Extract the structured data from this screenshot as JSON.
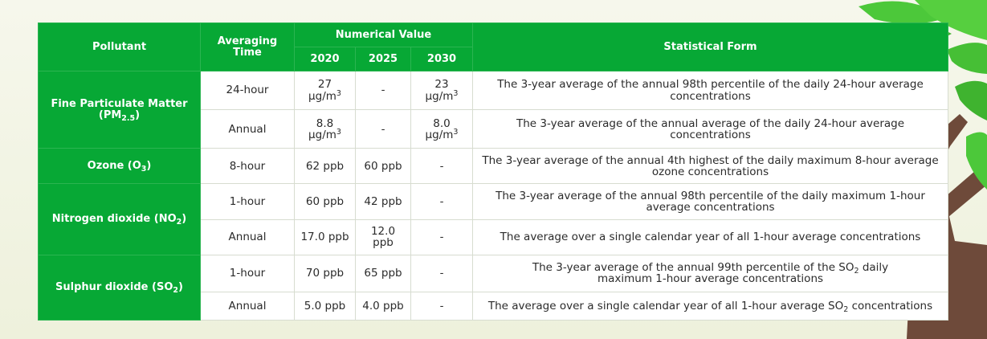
{
  "header": {
    "pollutant": "Pollutant",
    "averaging_time": "Averaging Time",
    "numerical_value": "Numerical Value",
    "years": [
      "2020",
      "2025",
      "2030"
    ],
    "statistical_form": "Statistical Form"
  },
  "pollutants": {
    "pm25": {
      "name": "Fine Particulate Matter",
      "formula_prefix": "(PM",
      "formula_sub": "2.5",
      "formula_suffix": ")"
    },
    "o3": {
      "name": "Ozone (O",
      "sub": "3",
      "suffix": ")"
    },
    "no2": {
      "name": "Nitrogen dioxide (NO",
      "sub": "2",
      "suffix": ")"
    },
    "so2": {
      "name": "Sulphur dioxide (SO",
      "sub": "2",
      "suffix": ")"
    }
  },
  "rows": [
    {
      "time": "24-hour",
      "v2020": "27",
      "v2020_unit": "µg/m",
      "v2020_exp": "3",
      "v2025": "-",
      "v2030": "23",
      "v2030_unit": "µg/m",
      "v2030_exp": "3",
      "form": "The 3-year average of the annual 98th percentile of the daily 24-hour average concentrations"
    },
    {
      "time": "Annual",
      "v2020": "8.8",
      "v2020_unit": "µg/m",
      "v2020_exp": "3",
      "v2025": "-",
      "v2030": "8.0",
      "v2030_unit": "µg/m",
      "v2030_exp": "3",
      "form": "The 3-year average of the annual average of the daily 24-hour average concentrations"
    },
    {
      "time": "8-hour",
      "v2020": "62 ppb",
      "v2025": "60 ppb",
      "v2030": "-",
      "form": "The 3-year average of the annual 4th highest of the daily maximum 8-hour average ozone concentrations"
    },
    {
      "time": "1-hour",
      "v2020": "60 ppb",
      "v2025": "42 ppb",
      "v2030": "-",
      "form": "The 3-year average of the annual 98th percentile of the daily maximum 1-hour average concentrations"
    },
    {
      "time": "Annual",
      "v2020": "17.0 ppb",
      "v2025": "12.0 ppb",
      "v2030": "-",
      "form": "The average over a single calendar year of all 1-hour average concentrations"
    },
    {
      "time": "1-hour",
      "v2020": "70 ppb",
      "v2025": "65 ppb",
      "v2030": "-",
      "form_pre": "The 3-year average of the annual 99th percentile of the SO",
      "form_sub": "2",
      "form_post": " daily maximum 1-hour average concentrations"
    },
    {
      "time": "Annual",
      "v2020": "5.0 ppb",
      "v2025": "4.0 ppb",
      "v2030": "-",
      "form_pre": "The average over a single calendar year of all 1-hour average SO",
      "form_sub": "2",
      "form_post": " concentrations"
    }
  ],
  "colors": {
    "header_green": "#07a835",
    "leaf_green": "#4cc83a",
    "trunk_brown": "#6e4a3a"
  },
  "decoration": {
    "icon": "tree-icon"
  }
}
